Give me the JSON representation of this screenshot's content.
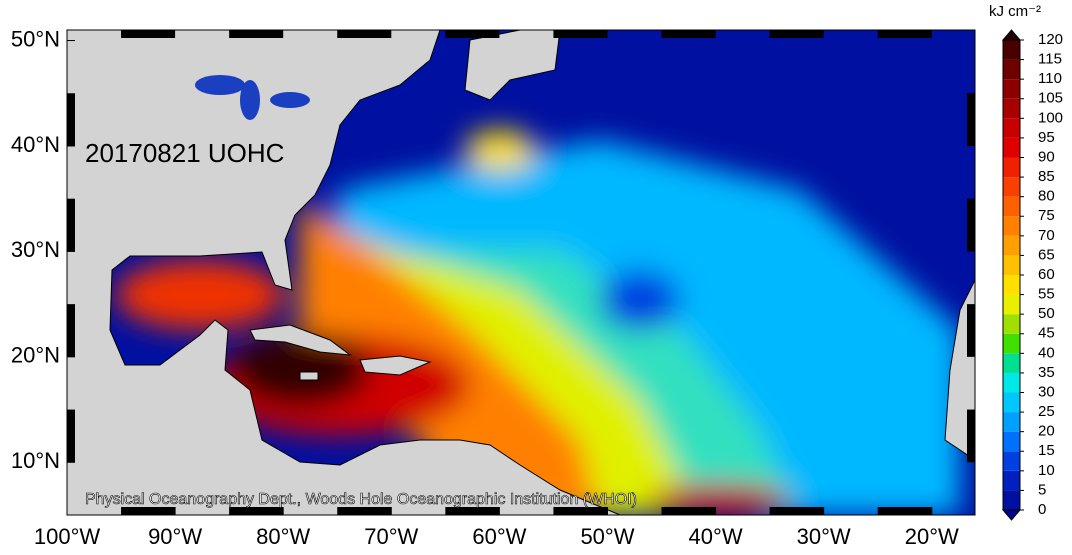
{
  "map": {
    "annotation": "20170821 UOHC",
    "credit": "Physical Oceanography Dept., Woods Hole Oceanographic Institution (WHOI)",
    "xlim": [
      -100,
      -16
    ],
    "ylim": [
      5,
      51
    ],
    "xticks": [
      {
        "value": -100,
        "label": "100°W"
      },
      {
        "value": -90,
        "label": "90°W"
      },
      {
        "value": -80,
        "label": "80°W"
      },
      {
        "value": -70,
        "label": "70°W"
      },
      {
        "value": -60,
        "label": "60°W"
      },
      {
        "value": -50,
        "label": "50°W"
      },
      {
        "value": -40,
        "label": "40°W"
      },
      {
        "value": -30,
        "label": "30°W"
      },
      {
        "value": -20,
        "label": "20°W"
      }
    ],
    "yticks": [
      {
        "value": 10,
        "label": "10°N"
      },
      {
        "value": 20,
        "label": "20°N"
      },
      {
        "value": 30,
        "label": "30°N"
      },
      {
        "value": 40,
        "label": "40°N"
      },
      {
        "value": 50,
        "label": "50°N"
      }
    ],
    "colorbar": {
      "title": "kJ cm⁻²",
      "ticks": [
        0,
        5,
        10,
        15,
        20,
        25,
        30,
        35,
        40,
        45,
        50,
        55,
        60,
        65,
        70,
        75,
        80,
        85,
        90,
        95,
        100,
        105,
        110,
        115,
        120
      ],
      "colors": [
        "#0010a0",
        "#0020c0",
        "#0040e0",
        "#0070ff",
        "#00a0ff",
        "#00c8ff",
        "#00e8e8",
        "#00e090",
        "#40e000",
        "#a0e000",
        "#e8f000",
        "#ffe000",
        "#ffc000",
        "#ffa000",
        "#ff8000",
        "#ff6000",
        "#f84000",
        "#f02000",
        "#e00000",
        "#c80000",
        "#a80000",
        "#8c0000",
        "#6e0000",
        "#4a0000"
      ],
      "under_color": "#000090",
      "over_color": "#200000"
    }
  }
}
